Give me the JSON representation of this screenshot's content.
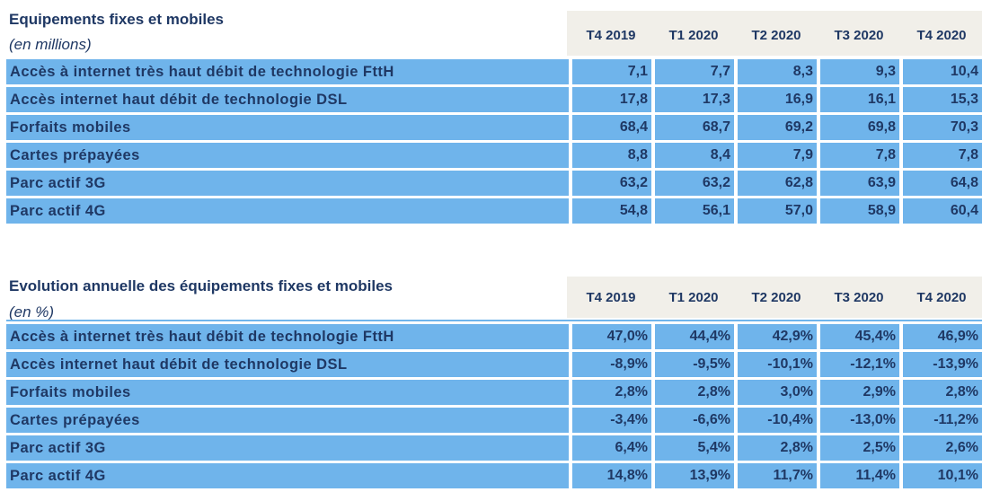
{
  "colors": {
    "cell_blue": "#6FB4EB",
    "header_beige": "#F1EFE9",
    "text_navy": "#1F3864"
  },
  "tables": [
    {
      "title": "Equipements fixes et mobiles",
      "unit": "(en millions)",
      "columns": [
        "T4 2019",
        "T1 2020",
        "T2 2020",
        "T3 2020",
        "T4 2020"
      ],
      "rows": [
        {
          "label": "Accès à internet très haut débit de technologie FttH",
          "values": [
            "7,1",
            "7,7",
            "8,3",
            "9,3",
            "10,4"
          ]
        },
        {
          "label": "Accès internet haut débit de technologie DSL",
          "values": [
            "17,8",
            "17,3",
            "16,9",
            "16,1",
            "15,3"
          ]
        },
        {
          "label": "Forfaits mobiles",
          "values": [
            "68,4",
            "68,7",
            "69,2",
            "69,8",
            "70,3"
          ]
        },
        {
          "label": "Cartes prépayées",
          "values": [
            "8,8",
            "8,4",
            "7,9",
            "7,8",
            "7,8"
          ]
        },
        {
          "label": "Parc actif 3G",
          "values": [
            "63,2",
            "63,2",
            "62,8",
            "63,9",
            "64,8"
          ]
        },
        {
          "label": "Parc actif 4G",
          "values": [
            "54,8",
            "56,1",
            "57,0",
            "58,9",
            "60,4"
          ]
        }
      ]
    },
    {
      "title": "Evolution annuelle des équipements fixes et mobiles",
      "unit": "(en %)",
      "columns": [
        "T4 2019",
        "T1 2020",
        "T2 2020",
        "T3 2020",
        "T4 2020"
      ],
      "rows": [
        {
          "label": "Accès à internet très haut débit de technologie FttH",
          "values": [
            "47,0%",
            "44,4%",
            "42,9%",
            "45,4%",
            "46,9%"
          ]
        },
        {
          "label": "Accès internet haut débit de technologie DSL",
          "values": [
            "-8,9%",
            "-9,5%",
            "-10,1%",
            "-12,1%",
            "-13,9%"
          ]
        },
        {
          "label": "Forfaits mobiles",
          "values": [
            "2,8%",
            "2,8%",
            "3,0%",
            "2,9%",
            "2,8%"
          ]
        },
        {
          "label": "Cartes prépayées",
          "values": [
            "-3,4%",
            "-6,6%",
            "-10,4%",
            "-13,0%",
            "-11,2%"
          ]
        },
        {
          "label": "Parc actif 3G",
          "values": [
            "6,4%",
            "5,4%",
            "2,8%",
            "2,5%",
            "2,6%"
          ]
        },
        {
          "label": "Parc actif 4G",
          "values": [
            "14,8%",
            "13,9%",
            "11,7%",
            "11,4%",
            "10,1%"
          ]
        }
      ]
    }
  ],
  "chart_data": [
    {
      "type": "table",
      "title": "Equipements fixes et mobiles (en millions)",
      "categories": [
        "T4 2019",
        "T1 2020",
        "T2 2020",
        "T3 2020",
        "T4 2020"
      ],
      "series": [
        {
          "name": "Accès à internet très haut débit de technologie FttH",
          "values": [
            7.1,
            7.7,
            8.3,
            9.3,
            10.4
          ]
        },
        {
          "name": "Accès internet haut débit de technologie DSL",
          "values": [
            17.8,
            17.3,
            16.9,
            16.1,
            15.3
          ]
        },
        {
          "name": "Forfaits mobiles",
          "values": [
            68.4,
            68.7,
            69.2,
            69.8,
            70.3
          ]
        },
        {
          "name": "Cartes prépayées",
          "values": [
            8.8,
            8.4,
            7.9,
            7.8,
            7.8
          ]
        },
        {
          "name": "Parc actif 3G",
          "values": [
            63.2,
            63.2,
            62.8,
            63.9,
            64.8
          ]
        },
        {
          "name": "Parc actif 4G",
          "values": [
            54.8,
            56.1,
            57.0,
            58.9,
            60.4
          ]
        }
      ]
    },
    {
      "type": "table",
      "title": "Evolution annuelle des équipements fixes et mobiles (en %)",
      "categories": [
        "T4 2019",
        "T1 2020",
        "T2 2020",
        "T3 2020",
        "T4 2020"
      ],
      "series": [
        {
          "name": "Accès à internet très haut débit de technologie FttH",
          "values": [
            47.0,
            44.4,
            42.9,
            45.4,
            46.9
          ]
        },
        {
          "name": "Accès internet haut débit de technologie DSL",
          "values": [
            -8.9,
            -9.5,
            -10.1,
            -12.1,
            -13.9
          ]
        },
        {
          "name": "Forfaits mobiles",
          "values": [
            2.8,
            2.8,
            3.0,
            2.9,
            2.8
          ]
        },
        {
          "name": "Cartes prépayées",
          "values": [
            -3.4,
            -6.6,
            -10.4,
            -13.0,
            -11.2
          ]
        },
        {
          "name": "Parc actif 3G",
          "values": [
            6.4,
            5.4,
            2.8,
            2.5,
            2.6
          ]
        },
        {
          "name": "Parc actif 4G",
          "values": [
            14.8,
            13.9,
            11.7,
            11.4,
            10.1
          ]
        }
      ]
    }
  ]
}
